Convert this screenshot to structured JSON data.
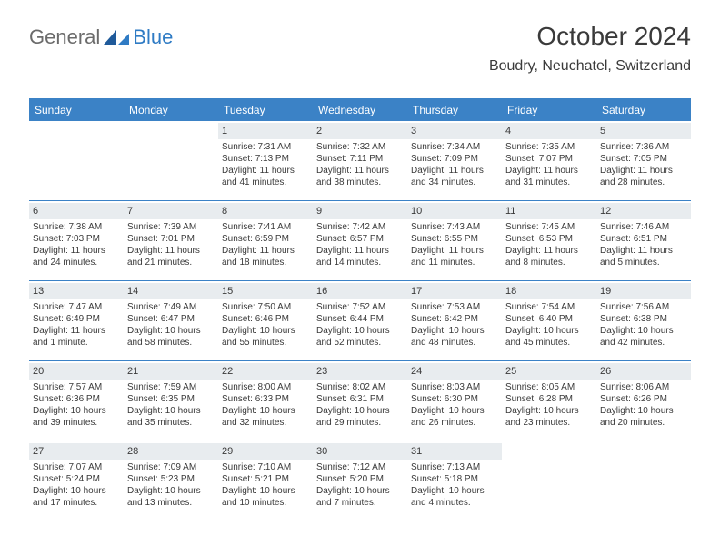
{
  "logo": {
    "text1": "General",
    "text2": "Blue"
  },
  "title": "October 2024",
  "location": "Boudry, Neuchatel, Switzerland",
  "colors": {
    "accent": "#3b82c6",
    "headband": "#e8ecef",
    "text": "#3a3a3a"
  },
  "dayHeaders": [
    "Sunday",
    "Monday",
    "Tuesday",
    "Wednesday",
    "Thursday",
    "Friday",
    "Saturday"
  ],
  "weeks": [
    [
      null,
      null,
      {
        "n": "1",
        "sr": "Sunrise: 7:31 AM",
        "ss": "Sunset: 7:13 PM",
        "dl": "Daylight: 11 hours and 41 minutes."
      },
      {
        "n": "2",
        "sr": "Sunrise: 7:32 AM",
        "ss": "Sunset: 7:11 PM",
        "dl": "Daylight: 11 hours and 38 minutes."
      },
      {
        "n": "3",
        "sr": "Sunrise: 7:34 AM",
        "ss": "Sunset: 7:09 PM",
        "dl": "Daylight: 11 hours and 34 minutes."
      },
      {
        "n": "4",
        "sr": "Sunrise: 7:35 AM",
        "ss": "Sunset: 7:07 PM",
        "dl": "Daylight: 11 hours and 31 minutes."
      },
      {
        "n": "5",
        "sr": "Sunrise: 7:36 AM",
        "ss": "Sunset: 7:05 PM",
        "dl": "Daylight: 11 hours and 28 minutes."
      }
    ],
    [
      {
        "n": "6",
        "sr": "Sunrise: 7:38 AM",
        "ss": "Sunset: 7:03 PM",
        "dl": "Daylight: 11 hours and 24 minutes."
      },
      {
        "n": "7",
        "sr": "Sunrise: 7:39 AM",
        "ss": "Sunset: 7:01 PM",
        "dl": "Daylight: 11 hours and 21 minutes."
      },
      {
        "n": "8",
        "sr": "Sunrise: 7:41 AM",
        "ss": "Sunset: 6:59 PM",
        "dl": "Daylight: 11 hours and 18 minutes."
      },
      {
        "n": "9",
        "sr": "Sunrise: 7:42 AM",
        "ss": "Sunset: 6:57 PM",
        "dl": "Daylight: 11 hours and 14 minutes."
      },
      {
        "n": "10",
        "sr": "Sunrise: 7:43 AM",
        "ss": "Sunset: 6:55 PM",
        "dl": "Daylight: 11 hours and 11 minutes."
      },
      {
        "n": "11",
        "sr": "Sunrise: 7:45 AM",
        "ss": "Sunset: 6:53 PM",
        "dl": "Daylight: 11 hours and 8 minutes."
      },
      {
        "n": "12",
        "sr": "Sunrise: 7:46 AM",
        "ss": "Sunset: 6:51 PM",
        "dl": "Daylight: 11 hours and 5 minutes."
      }
    ],
    [
      {
        "n": "13",
        "sr": "Sunrise: 7:47 AM",
        "ss": "Sunset: 6:49 PM",
        "dl": "Daylight: 11 hours and 1 minute."
      },
      {
        "n": "14",
        "sr": "Sunrise: 7:49 AM",
        "ss": "Sunset: 6:47 PM",
        "dl": "Daylight: 10 hours and 58 minutes."
      },
      {
        "n": "15",
        "sr": "Sunrise: 7:50 AM",
        "ss": "Sunset: 6:46 PM",
        "dl": "Daylight: 10 hours and 55 minutes."
      },
      {
        "n": "16",
        "sr": "Sunrise: 7:52 AM",
        "ss": "Sunset: 6:44 PM",
        "dl": "Daylight: 10 hours and 52 minutes."
      },
      {
        "n": "17",
        "sr": "Sunrise: 7:53 AM",
        "ss": "Sunset: 6:42 PM",
        "dl": "Daylight: 10 hours and 48 minutes."
      },
      {
        "n": "18",
        "sr": "Sunrise: 7:54 AM",
        "ss": "Sunset: 6:40 PM",
        "dl": "Daylight: 10 hours and 45 minutes."
      },
      {
        "n": "19",
        "sr": "Sunrise: 7:56 AM",
        "ss": "Sunset: 6:38 PM",
        "dl": "Daylight: 10 hours and 42 minutes."
      }
    ],
    [
      {
        "n": "20",
        "sr": "Sunrise: 7:57 AM",
        "ss": "Sunset: 6:36 PM",
        "dl": "Daylight: 10 hours and 39 minutes."
      },
      {
        "n": "21",
        "sr": "Sunrise: 7:59 AM",
        "ss": "Sunset: 6:35 PM",
        "dl": "Daylight: 10 hours and 35 minutes."
      },
      {
        "n": "22",
        "sr": "Sunrise: 8:00 AM",
        "ss": "Sunset: 6:33 PM",
        "dl": "Daylight: 10 hours and 32 minutes."
      },
      {
        "n": "23",
        "sr": "Sunrise: 8:02 AM",
        "ss": "Sunset: 6:31 PM",
        "dl": "Daylight: 10 hours and 29 minutes."
      },
      {
        "n": "24",
        "sr": "Sunrise: 8:03 AM",
        "ss": "Sunset: 6:30 PM",
        "dl": "Daylight: 10 hours and 26 minutes."
      },
      {
        "n": "25",
        "sr": "Sunrise: 8:05 AM",
        "ss": "Sunset: 6:28 PM",
        "dl": "Daylight: 10 hours and 23 minutes."
      },
      {
        "n": "26",
        "sr": "Sunrise: 8:06 AM",
        "ss": "Sunset: 6:26 PM",
        "dl": "Daylight: 10 hours and 20 minutes."
      }
    ],
    [
      {
        "n": "27",
        "sr": "Sunrise: 7:07 AM",
        "ss": "Sunset: 5:24 PM",
        "dl": "Daylight: 10 hours and 17 minutes."
      },
      {
        "n": "28",
        "sr": "Sunrise: 7:09 AM",
        "ss": "Sunset: 5:23 PM",
        "dl": "Daylight: 10 hours and 13 minutes."
      },
      {
        "n": "29",
        "sr": "Sunrise: 7:10 AM",
        "ss": "Sunset: 5:21 PM",
        "dl": "Daylight: 10 hours and 10 minutes."
      },
      {
        "n": "30",
        "sr": "Sunrise: 7:12 AM",
        "ss": "Sunset: 5:20 PM",
        "dl": "Daylight: 10 hours and 7 minutes."
      },
      {
        "n": "31",
        "sr": "Sunrise: 7:13 AM",
        "ss": "Sunset: 5:18 PM",
        "dl": "Daylight: 10 hours and 4 minutes."
      },
      null,
      null
    ]
  ]
}
